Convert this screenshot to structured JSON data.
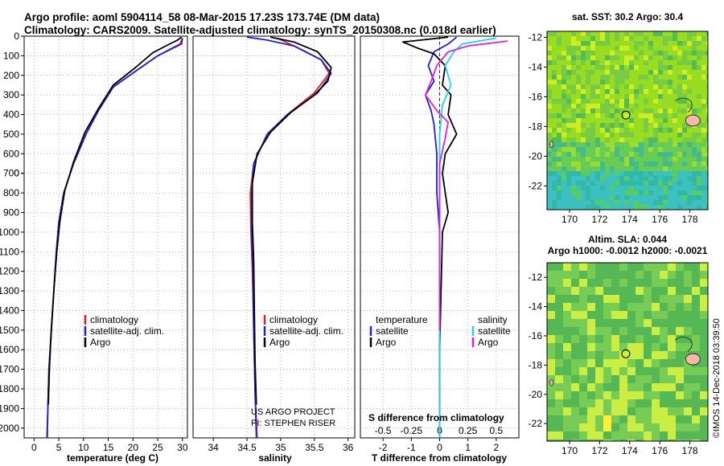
{
  "header": {
    "line1": "Argo profile: aoml 5904114_58 08-Mar-2015 17.23S 173.74E (DM data)",
    "line2": "Climatology: CARS2009. Satellite-adjusted climatology: synTS_20150308.nc (0.018d earlier)"
  },
  "colors": {
    "climatology": "#e02020",
    "satellite": "#1f1fd8",
    "argo": "#000000",
    "sat_salinity": "#22d3e6",
    "argo_salinity": "#e020e0"
  },
  "chart_data": [
    {
      "id": "temperature",
      "type": "line",
      "xlabel": "temperature (deg C)",
      "ylabel": "",
      "xlim": [
        -2,
        31
      ],
      "ylim": [
        2050,
        0
      ],
      "xticks": [
        0,
        5,
        10,
        15,
        20,
        25,
        30
      ],
      "xtick_labels": [
        "0",
        "5",
        "10",
        "15",
        "20",
        "25",
        "30"
      ],
      "yticks": [
        0,
        100,
        200,
        300,
        400,
        500,
        600,
        700,
        800,
        900,
        1000,
        1100,
        1200,
        1300,
        1400,
        1500,
        1600,
        1700,
        1800,
        1900,
        2000
      ],
      "ytick_labels": [
        "0",
        "100",
        "200",
        "300",
        "400",
        "500",
        "600",
        "700",
        "0",
        "800",
        "900",
        "1000",
        "1100",
        "1200",
        "1300",
        "1400",
        "1500",
        "1600",
        "1700",
        "1800",
        "1900",
        "2000"
      ],
      "legend": [
        "climatology",
        "satellite-adj. clim.",
        "Argo"
      ],
      "series": [
        {
          "name": "climatology",
          "color_key": "climatology",
          "points": [
            [
              30,
              10
            ],
            [
              29.5,
              40
            ],
            [
              28,
              60
            ],
            [
              25,
              100
            ],
            [
              21,
              170
            ],
            [
              16,
              260
            ],
            [
              13,
              380
            ],
            [
              10.5,
              500
            ],
            [
              8,
              650
            ],
            [
              6,
              800
            ],
            [
              5,
              950
            ],
            [
              4.5,
              1100
            ],
            [
              4,
              1300
            ],
            [
              3.5,
              1500
            ],
            [
              3,
              1700
            ],
            [
              2.8,
              1900
            ],
            [
              2.7,
              2050
            ]
          ]
        },
        {
          "name": "satellite-adj. clim.",
          "color_key": "satellite",
          "points": [
            [
              30,
              10
            ],
            [
              29.8,
              40
            ],
            [
              28.2,
              60
            ],
            [
              25,
              100
            ],
            [
              21,
              170
            ],
            [
              16,
              260
            ],
            [
              13,
              380
            ],
            [
              10.5,
              500
            ],
            [
              8,
              650
            ],
            [
              6,
              800
            ],
            [
              5,
              950
            ],
            [
              4.5,
              1100
            ],
            [
              4,
              1300
            ],
            [
              3.5,
              1500
            ],
            [
              3,
              1700
            ],
            [
              2.8,
              1900
            ],
            [
              2.6,
              2050
            ]
          ]
        },
        {
          "name": "Argo",
          "color_key": "argo",
          "points": [
            [
              29.8,
              5
            ],
            [
              29,
              20
            ],
            [
              27,
              45
            ],
            [
              24,
              85
            ],
            [
              20.5,
              160
            ],
            [
              16,
              250
            ],
            [
              13,
              370
            ],
            [
              10.3,
              490
            ],
            [
              8,
              640
            ],
            [
              6.2,
              790
            ],
            [
              5.2,
              950
            ],
            [
              4.6,
              1100
            ],
            [
              4,
              1300
            ],
            [
              3.5,
              1500
            ],
            [
              3.1,
              1700
            ],
            [
              2.9,
              1880
            ]
          ]
        }
      ]
    },
    {
      "id": "salinity",
      "type": "line",
      "xlabel": "salinity",
      "xlim": [
        33.7,
        36.1
      ],
      "ylim": [
        2050,
        0
      ],
      "xticks": [
        34,
        34.5,
        35,
        35.5,
        36
      ],
      "xtick_labels": [
        "34",
        "34.5",
        "35",
        "35.5",
        "36"
      ],
      "legend": [
        "climatology",
        "satellite-adj. clim.",
        "Argo"
      ],
      "credit_line1": "US ARGO PROJECT",
      "credit_line2": "PI: STEPHEN RISER",
      "series": [
        {
          "name": "climatology",
          "color_key": "climatology",
          "points": [
            [
              34.95,
              10
            ],
            [
              35.2,
              50
            ],
            [
              35.6,
              120
            ],
            [
              35.72,
              190
            ],
            [
              35.5,
              290
            ],
            [
              35.1,
              400
            ],
            [
              34.8,
              500
            ],
            [
              34.6,
              650
            ],
            [
              34.55,
              800
            ],
            [
              34.56,
              1000
            ],
            [
              34.58,
              1200
            ],
            [
              34.6,
              1500
            ],
            [
              34.62,
              1800
            ],
            [
              34.65,
              2050
            ]
          ]
        },
        {
          "name": "satellite-adj. clim.",
          "color_key": "satellite",
          "points": [
            [
              34.5,
              5
            ],
            [
              34.8,
              20
            ],
            [
              35.2,
              50
            ],
            [
              35.6,
              120
            ],
            [
              35.75,
              190
            ],
            [
              35.55,
              290
            ],
            [
              35.1,
              400
            ],
            [
              34.8,
              500
            ],
            [
              34.6,
              650
            ],
            [
              34.57,
              800
            ],
            [
              34.57,
              1000
            ],
            [
              34.59,
              1200
            ],
            [
              34.6,
              1500
            ],
            [
              34.62,
              1800
            ],
            [
              34.64,
              2050
            ]
          ]
        },
        {
          "name": "Argo",
          "color_key": "argo",
          "points": [
            [
              34.85,
              5
            ],
            [
              35.2,
              30
            ],
            [
              35.55,
              80
            ],
            [
              35.75,
              160
            ],
            [
              35.7,
              230
            ],
            [
              35.5,
              300
            ],
            [
              35.15,
              390
            ],
            [
              34.85,
              490
            ],
            [
              34.65,
              600
            ],
            [
              34.58,
              750
            ],
            [
              34.58,
              950
            ],
            [
              34.6,
              1150
            ],
            [
              34.61,
              1400
            ],
            [
              34.62,
              1650
            ],
            [
              34.64,
              1880
            ]
          ]
        }
      ]
    },
    {
      "id": "difference",
      "type": "line",
      "xlabel": "T difference from climatology",
      "xlabel_top": "S difference from climatology",
      "xlim": [
        -2.8,
        2.8
      ],
      "ylim": [
        2050,
        0
      ],
      "xticks": [
        -2,
        -1,
        0,
        1,
        2
      ],
      "xtick_labels": [
        "-2",
        "-1",
        "0",
        "1",
        "2"
      ],
      "top_ticks": [
        -0.5,
        -0.25,
        0,
        0.25,
        0.5
      ],
      "top_tick_labels": [
        "-0.5",
        "-0.25",
        "0",
        "0.25",
        "0.5"
      ],
      "legend_temperature": "temperature",
      "legend_salinity": "salinity",
      "legend_satellite": "satellite",
      "legend_argo": "Argo",
      "series": [
        {
          "name": "T satellite",
          "color_key": "satellite",
          "points": [
            [
              0.6,
              5
            ],
            [
              0.3,
              40
            ],
            [
              -0.2,
              80
            ],
            [
              -0.4,
              150
            ],
            [
              -0.2,
              230
            ],
            [
              -0.5,
              300
            ],
            [
              -0.3,
              380
            ],
            [
              -0.2,
              450
            ],
            [
              -0.1,
              600
            ],
            [
              -0.1,
              800
            ],
            [
              0,
              1000
            ],
            [
              0,
              2050
            ]
          ]
        },
        {
          "name": "T Argo",
          "color_key": "argo",
          "points": [
            [
              0.3,
              5
            ],
            [
              -1.3,
              30
            ],
            [
              -0.8,
              60
            ],
            [
              -0.2,
              90
            ],
            [
              0.2,
              150
            ],
            [
              0.1,
              250
            ],
            [
              0.4,
              300
            ],
            [
              0.3,
              400
            ],
            [
              0.6,
              500
            ],
            [
              0.2,
              600
            ],
            [
              0.1,
              700
            ],
            [
              0.2,
              800
            ],
            [
              0.3,
              900
            ],
            [
              0.1,
              1000
            ],
            [
              0.05,
              1300
            ],
            [
              0,
              1600
            ],
            [
              0,
              1880
            ]
          ]
        },
        {
          "name": "S satellite",
          "color_key": "sat_salinity",
          "points": [
            [
              2.0,
              10
            ],
            [
              0.8,
              40
            ],
            [
              0.5,
              80
            ],
            [
              0.2,
              150
            ],
            [
              0.4,
              250
            ],
            [
              0.1,
              350
            ],
            [
              0,
              500
            ],
            [
              0,
              2050
            ]
          ]
        },
        {
          "name": "S Argo",
          "color_key": "argo_salinity",
          "points": [
            [
              2.4,
              25
            ],
            [
              1.0,
              50
            ],
            [
              0.3,
              80
            ],
            [
              -0.1,
              150
            ],
            [
              -0.3,
              230
            ],
            [
              -0.5,
              300
            ],
            [
              -0.1,
              380
            ],
            [
              0.3,
              440
            ],
            [
              0.2,
              520
            ],
            [
              0,
              650
            ],
            [
              0,
              900
            ],
            [
              0,
              1200
            ],
            [
              0,
              1500
            ]
          ]
        }
      ]
    },
    {
      "id": "sst_map",
      "type": "heatmap",
      "title": "sat. SST: 30.2  Argo: 30.4",
      "xlim": [
        168.5,
        179.2
      ],
      "ylim": [
        -23.6,
        -11.6
      ],
      "xticks": [
        170,
        172,
        174,
        176,
        178
      ],
      "xtick_labels": [
        "170",
        "172",
        "174",
        "176",
        "178"
      ],
      "yticks": [
        -12,
        -14,
        -16,
        -18,
        -20,
        -22
      ],
      "ytick_labels": [
        "-12",
        "-14",
        "-16",
        "-18",
        "-20",
        "-22"
      ],
      "marker": [
        173.74,
        -17.23
      ]
    },
    {
      "id": "sla_map",
      "type": "heatmap",
      "title_line1": "Altim. SLA: 0.044",
      "title_line2": "Argo h1000: -0.0012  h2000: -0.0021",
      "xlim": [
        168.5,
        179.2
      ],
      "ylim": [
        -23.2,
        -11.0
      ],
      "xticks": [
        170,
        172,
        174,
        176,
        178
      ],
      "xtick_labels": [
        "170",
        "172",
        "174",
        "176",
        "178"
      ],
      "yticks": [
        -12,
        -14,
        -16,
        -18,
        -20,
        -22
      ],
      "ytick_labels": [
        "-12",
        "-14",
        "-16",
        "-18",
        "-20",
        "-22"
      ],
      "marker": [
        173.74,
        -17.23
      ]
    }
  ],
  "stamp": "©IMOS 14-Dec-2018 03:39:50"
}
